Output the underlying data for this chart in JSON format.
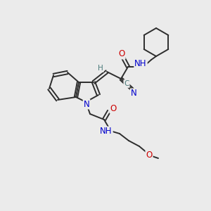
{
  "bg_color": "#ebebeb",
  "bond_color": "#2d2d2d",
  "atom_colors": {
    "N": "#0000cd",
    "O": "#cc0000",
    "C": "#4a7a7a",
    "H": "#4a7a7a"
  },
  "font_size": 8.5,
  "line_width": 1.4
}
